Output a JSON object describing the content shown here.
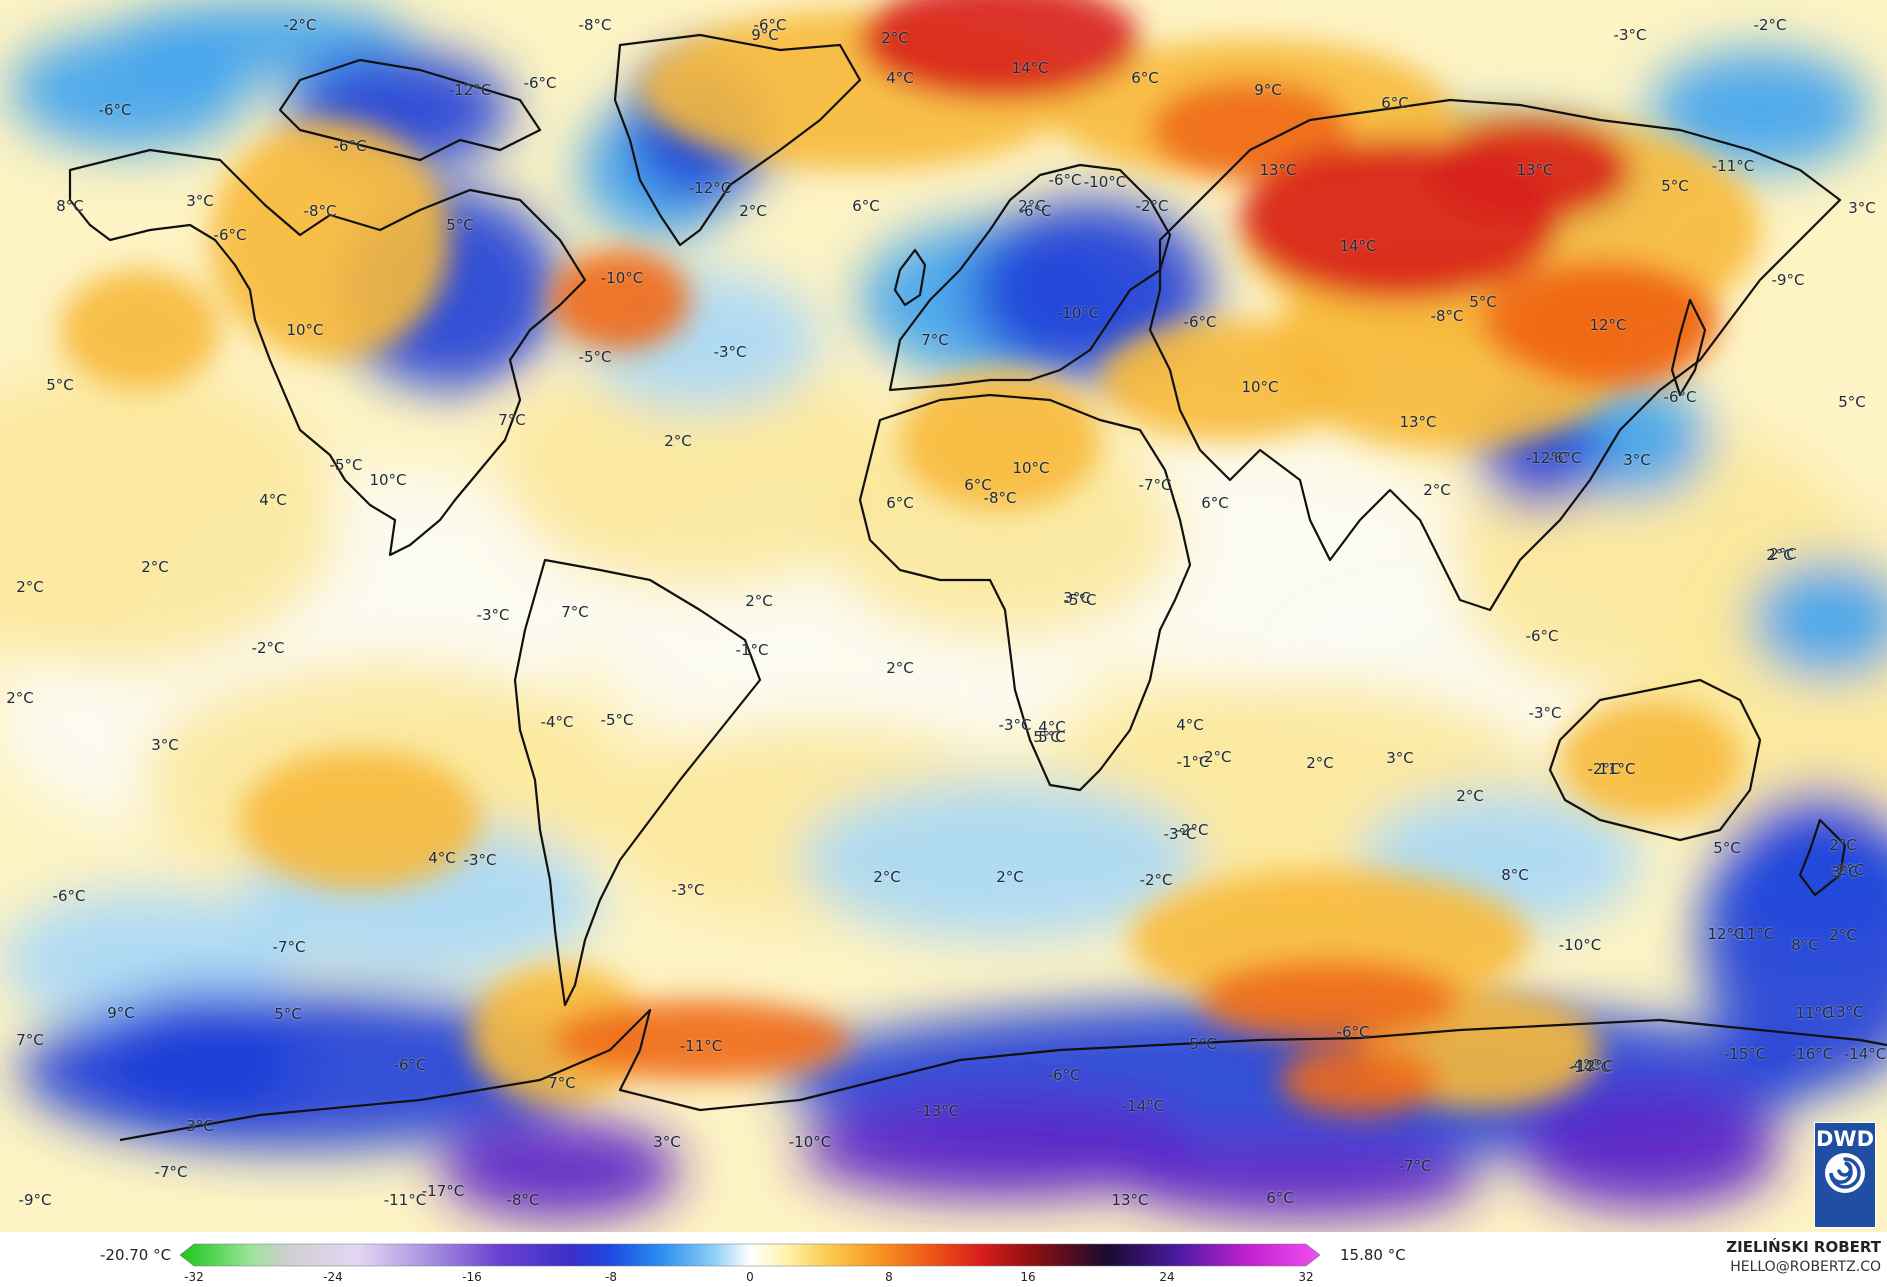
{
  "map": {
    "colors": {
      "cold_extreme": "#5a1fc8",
      "cold_deep": "#1f3fd8",
      "cold": "#3ea2f0",
      "cool": "#a8d8f8",
      "neutral": "#fbfbf7",
      "warm_light": "#fbe79a",
      "warm": "#f7b93a",
      "hot": "#f06a18",
      "very_hot": "#d8201c",
      "coast": "#111111"
    },
    "labels": [
      "-2°C",
      "-8°C",
      "-6°C",
      "9°C",
      "2°C",
      "4°C",
      "14°C",
      "6°C",
      "9°C",
      "6°C",
      "-3°C",
      "-2°C",
      "-6°C",
      "-6°C",
      "-12°C",
      "-6°C",
      "-10°C",
      "-12°C",
      "8°C",
      "3°C",
      "-8°C",
      "-6°C",
      "5°C",
      "2°C",
      "6°C",
      "2°C",
      "-6°C",
      "-2°C",
      "-6°C",
      "13°C",
      "5°C",
      "3°C",
      "-11°C",
      "14°C",
      "13°C",
      "-10°C",
      "-5°C",
      "-9°C",
      "-8°C",
      "5°C",
      "12°C",
      "10°C",
      "-10°C",
      "-6°C",
      "7°C",
      "-3°C",
      "5°C",
      "10°C",
      "13°C",
      "-6°C",
      "5°C",
      "7°C",
      "2°C",
      "-5°C",
      "10°C",
      "-6°C",
      "10°C",
      "-12°C",
      "3°C",
      "4°C",
      "6°C",
      "-7°C",
      "6°C",
      "-8°C",
      "2°C",
      "6°C",
      "2°C",
      "2°C",
      "-3°C",
      "7°C",
      "2°C",
      "3°C",
      "-5°C",
      "-1°C",
      "2°C",
      "2°C",
      "-2°C",
      "2°C",
      "-6°C",
      "2°C",
      "-5°C",
      "-3°C",
      "4°C",
      "4°C",
      "3°C",
      "3°C",
      "5°C",
      "-3°C",
      "-2°C",
      "11°C",
      "2°C",
      "5°C",
      "2°C",
      "-2°C",
      "-1°C",
      "2°C",
      "4°C",
      "-3°C",
      "-4°C",
      "5°C",
      "-2°C",
      "3°C",
      "-2°C",
      "-6°C",
      "-3°C",
      "2°C",
      "8°C",
      "2°C",
      "-2°C",
      "-3°C",
      "12°C",
      "2°C",
      "-7°C",
      "8°C",
      "5°C",
      "-6°C",
      "13°C",
      "-10°C",
      "-11°C",
      "5°C",
      "-6°C",
      "11°C",
      "4°C",
      "9°C",
      "7°C",
      "-6°C",
      "-14°C",
      "-11°C",
      "-16°C",
      "-15°C",
      "-12°C",
      "7°C",
      "3°C",
      "-13°C",
      "-14°C",
      "-14°C",
      "-7°C",
      "3°C",
      "-10°C",
      "-7°C",
      "-9°C",
      "-17°C",
      "-11°C",
      "-8°C",
      "13°C",
      "6°C"
    ]
  },
  "logo": {
    "text": "DWD",
    "icon": "dwd-swirl-icon"
  },
  "legend": {
    "min_label": "-20.70 °C",
    "max_label": "15.80 °C",
    "ticks": [
      "-32",
      "-24",
      "-16",
      "-8",
      "0",
      "8",
      "16",
      "24",
      "32"
    ],
    "stops": [
      {
        "v": -32,
        "c": "#18c818"
      },
      {
        "v": -28,
        "c": "#9be39b"
      },
      {
        "v": -26,
        "c": "#cfcfcf"
      },
      {
        "v": -22,
        "c": "#e4d6f2"
      },
      {
        "v": -18,
        "c": "#a890e0"
      },
      {
        "v": -14,
        "c": "#6a3fd0"
      },
      {
        "v": -10,
        "c": "#3a30c8"
      },
      {
        "v": -8,
        "c": "#1f45e0"
      },
      {
        "v": -5,
        "c": "#2a8ef0"
      },
      {
        "v": -2,
        "c": "#8fd0f8"
      },
      {
        "v": 0,
        "c": "#ffffff"
      },
      {
        "v": 2,
        "c": "#fff3b0"
      },
      {
        "v": 4,
        "c": "#fcd25a"
      },
      {
        "v": 7,
        "c": "#f79a22"
      },
      {
        "v": 10,
        "c": "#ee5a16"
      },
      {
        "v": 13,
        "c": "#d81c1c"
      },
      {
        "v": 16,
        "c": "#8a1010"
      },
      {
        "v": 20,
        "c": "#1a0a30"
      },
      {
        "v": 24,
        "c": "#4a1aa0"
      },
      {
        "v": 28,
        "c": "#c020d0"
      },
      {
        "v": 32,
        "c": "#f050f0"
      }
    ]
  },
  "credit": {
    "name": "ZIELIŃSKI ROBERT",
    "email": "HELLO@ROBERTZ.CO"
  }
}
